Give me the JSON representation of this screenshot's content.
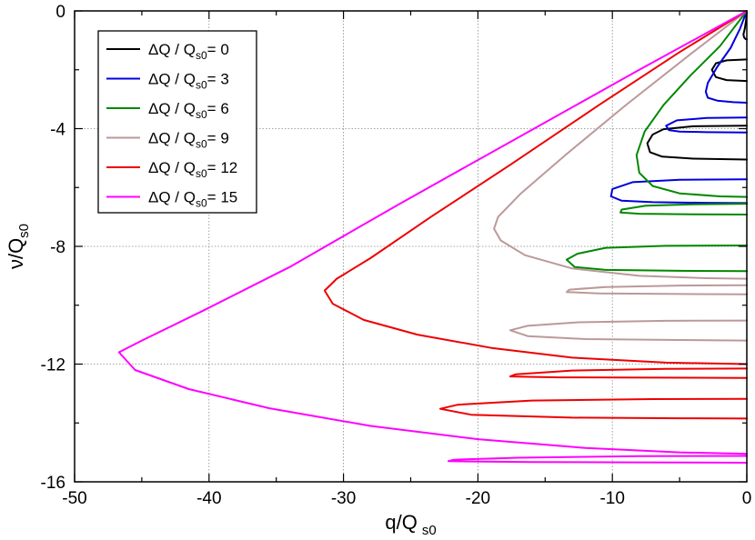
{
  "chart_data": {
    "type": "line",
    "title": "",
    "xlabel": {
      "main": "q/Q",
      "sub": "s0"
    },
    "ylabel": {
      "main": "ν/Q",
      "sub": "s0"
    },
    "xlim": [
      -50,
      0
    ],
    "ylim": [
      -16,
      0
    ],
    "xticks": [
      -50,
      -40,
      -30,
      -20,
      -10,
      0
    ],
    "yticks": [
      -16,
      -12,
      -8,
      -4,
      0
    ],
    "xtick_labels": [
      "-50",
      "-40",
      "-30",
      "-20",
      "-10",
      "0"
    ],
    "ytick_labels": [
      "-16",
      "-12",
      "-8",
      "-4",
      "0"
    ],
    "x_minor_step": 5,
    "y_minor_step": 2,
    "grid": true,
    "legend_position": "top-left",
    "series": [
      {
        "name": "ΔQ / Q_s0= 0",
        "legend_main": "ΔQ / Q",
        "legend_sub": "s0",
        "legend_tail": "= 0",
        "color": "#000000",
        "segments": [
          [
            [
              0,
              0
            ],
            [
              -0.05,
              -0.3
            ],
            [
              -0.15,
              -0.6
            ],
            [
              -0.25,
              -0.8
            ],
            [
              -0.2,
              -0.9
            ],
            [
              -0.1,
              -0.95
            ],
            [
              0,
              -0.97
            ]
          ],
          [
            [
              0,
              -1.65
            ],
            [
              -1.5,
              -1.68
            ],
            [
              -2.3,
              -1.78
            ],
            [
              -2.6,
              -2.0
            ],
            [
              -2.3,
              -2.25
            ],
            [
              -1.5,
              -2.35
            ],
            [
              0,
              -2.38
            ]
          ],
          [
            [
              0,
              -3.9
            ],
            [
              -4,
              -3.92
            ],
            [
              -6.2,
              -4.02
            ],
            [
              -7,
              -4.2
            ],
            [
              -7.4,
              -4.5
            ],
            [
              -7.2,
              -4.8
            ],
            [
              -6.3,
              -4.95
            ],
            [
              -4,
              -5.02
            ],
            [
              0,
              -5.05
            ]
          ]
        ]
      },
      {
        "name": "ΔQ / Q_s0= 3",
        "legend_main": "ΔQ / Q",
        "legend_sub": "s0",
        "legend_tail": "= 3",
        "color": "#0000dd",
        "segments": [
          [
            [
              0,
              0
            ],
            [
              -0.5,
              -0.6
            ],
            [
              -1.2,
              -1.25
            ],
            [
              -2.2,
              -1.9
            ],
            [
              -2.9,
              -2.45
            ],
            [
              -3.05,
              -2.75
            ],
            [
              -2.9,
              -2.95
            ],
            [
              -2.2,
              -3.05
            ],
            [
              -1,
              -3.1
            ],
            [
              0,
              -3.12
            ]
          ],
          [
            [
              0,
              -3.62
            ],
            [
              -3,
              -3.64
            ],
            [
              -5.2,
              -3.72
            ],
            [
              -6,
              -3.9
            ],
            [
              -5.8,
              -4.05
            ],
            [
              -5,
              -4.1
            ],
            [
              -3,
              -4.12
            ],
            [
              0,
              -4.13
            ]
          ],
          [
            [
              0,
              -5.72
            ],
            [
              -5,
              -5.74
            ],
            [
              -8.5,
              -5.82
            ],
            [
              -10,
              -6.05
            ],
            [
              -10.1,
              -6.3
            ],
            [
              -9.3,
              -6.45
            ],
            [
              -7,
              -6.5
            ],
            [
              -3,
              -6.52
            ],
            [
              0,
              -6.53
            ]
          ]
        ]
      },
      {
        "name": "ΔQ / Q_s0= 6",
        "legend_main": "ΔQ / Q",
        "legend_sub": "s0",
        "legend_tail": "= 6",
        "color": "#008800",
        "segments": [
          [
            [
              0,
              0
            ],
            [
              -2,
              -1.2
            ],
            [
              -4.2,
              -2.2
            ],
            [
              -6.2,
              -3.2
            ],
            [
              -7.6,
              -4.1
            ],
            [
              -8.2,
              -4.9
            ],
            [
              -8,
              -5.5
            ],
            [
              -7,
              -5.95
            ],
            [
              -5,
              -6.2
            ],
            [
              -2,
              -6.3
            ],
            [
              0,
              -6.32
            ]
          ],
          [
            [
              0,
              -6.55
            ],
            [
              -4,
              -6.57
            ],
            [
              -7.5,
              -6.62
            ],
            [
              -9.3,
              -6.75
            ],
            [
              -9.4,
              -6.85
            ],
            [
              -8,
              -6.89
            ],
            [
              -4,
              -6.91
            ],
            [
              0,
              -6.92
            ]
          ],
          [
            [
              0,
              -7.97
            ],
            [
              -6,
              -7.98
            ],
            [
              -10.5,
              -8.05
            ],
            [
              -12.6,
              -8.25
            ],
            [
              -13.4,
              -8.45
            ],
            [
              -12.8,
              -8.7
            ],
            [
              -10.5,
              -8.8
            ],
            [
              -5,
              -8.83
            ],
            [
              0,
              -8.84
            ]
          ]
        ]
      },
      {
        "name": "ΔQ / Q_s0= 9",
        "legend_main": "ΔQ / Q",
        "legend_sub": "s0",
        "legend_tail": "= 9",
        "color": "#bb9999",
        "segments": [
          [
            [
              0,
              0
            ],
            [
              -4,
              -1.4
            ],
            [
              -9,
              -3.2
            ],
            [
              -13.5,
              -4.9
            ],
            [
              -16.8,
              -6.2
            ],
            [
              -18.5,
              -7.0
            ],
            [
              -18.8,
              -7.4
            ],
            [
              -18.3,
              -7.8
            ],
            [
              -16.5,
              -8.3
            ],
            [
              -13,
              -8.75
            ],
            [
              -8,
              -9.0
            ],
            [
              -3,
              -9.08
            ],
            [
              0,
              -9.1
            ]
          ],
          [
            [
              0,
              -9.32
            ],
            [
              -5,
              -9.33
            ],
            [
              -10.5,
              -9.38
            ],
            [
              -13.2,
              -9.47
            ],
            [
              -13.4,
              -9.55
            ],
            [
              -11,
              -9.6
            ],
            [
              -5,
              -9.62
            ],
            [
              0,
              -9.63
            ]
          ],
          [
            [
              0,
              -10.52
            ],
            [
              -6,
              -10.53
            ],
            [
              -12.5,
              -10.58
            ],
            [
              -16.3,
              -10.7
            ],
            [
              -17.6,
              -10.85
            ],
            [
              -16.3,
              -11.05
            ],
            [
              -12,
              -11.15
            ],
            [
              -5,
              -11.18
            ],
            [
              0,
              -11.2
            ]
          ]
        ]
      },
      {
        "name": "ΔQ / Q_s0= 12",
        "legend_main": "ΔQ / Q",
        "legend_sub": "s0",
        "legend_tail": "= 12",
        "color": "#ee0000",
        "segments": [
          [
            [
              0,
              0
            ],
            [
              -5,
              -1.4
            ],
            [
              -11,
              -3.2
            ],
            [
              -17.5,
              -5.2
            ],
            [
              -23.5,
              -7.0
            ],
            [
              -28,
              -8.4
            ],
            [
              -30.5,
              -9.1
            ],
            [
              -31.4,
              -9.5
            ],
            [
              -30.8,
              -9.95
            ],
            [
              -28.5,
              -10.5
            ],
            [
              -24.5,
              -11.0
            ],
            [
              -19,
              -11.45
            ],
            [
              -13,
              -11.78
            ],
            [
              -6,
              -11.95
            ],
            [
              0,
              -12.0
            ]
          ],
          [
            [
              0,
              -12.15
            ],
            [
              -6,
              -12.16
            ],
            [
              -13,
              -12.22
            ],
            [
              -17.2,
              -12.35
            ],
            [
              -17.6,
              -12.42
            ],
            [
              -14,
              -12.45
            ],
            [
              -7,
              -12.46
            ],
            [
              0,
              -12.47
            ]
          ],
          [
            [
              0,
              -13.18
            ],
            [
              -7,
              -13.19
            ],
            [
              -16,
              -13.24
            ],
            [
              -21.5,
              -13.38
            ],
            [
              -22.8,
              -13.52
            ],
            [
              -20.5,
              -13.72
            ],
            [
              -13,
              -13.82
            ],
            [
              -5,
              -13.84
            ],
            [
              0,
              -13.85
            ]
          ]
        ]
      },
      {
        "name": "ΔQ / Q_s0= 15",
        "legend_main": "ΔQ / Q",
        "legend_sub": "s0",
        "legend_tail": "= 15",
        "color": "#ff00ff",
        "segments": [
          [
            [
              0,
              0
            ],
            [
              -8,
              -2.0
            ],
            [
              -17,
              -4.3
            ],
            [
              -26,
              -6.6
            ],
            [
              -34,
              -8.7
            ],
            [
              -40.5,
              -10.2
            ],
            [
              -45,
              -11.2
            ],
            [
              -46.7,
              -11.6
            ],
            [
              -45.5,
              -12.2
            ],
            [
              -41.5,
              -12.85
            ],
            [
              -35.5,
              -13.5
            ],
            [
              -28,
              -14.1
            ],
            [
              -20,
              -14.55
            ],
            [
              -12,
              -14.85
            ],
            [
              -5,
              -15.0
            ],
            [
              0,
              -15.05
            ]
          ],
          [
            [
              0,
              -15.12
            ],
            [
              -8,
              -15.13
            ],
            [
              -17,
              -15.18
            ],
            [
              -21.8,
              -15.25
            ],
            [
              -22.2,
              -15.3
            ],
            [
              -16,
              -15.33
            ],
            [
              -8,
              -15.34
            ],
            [
              0,
              -15.35
            ]
          ]
        ]
      }
    ]
  }
}
